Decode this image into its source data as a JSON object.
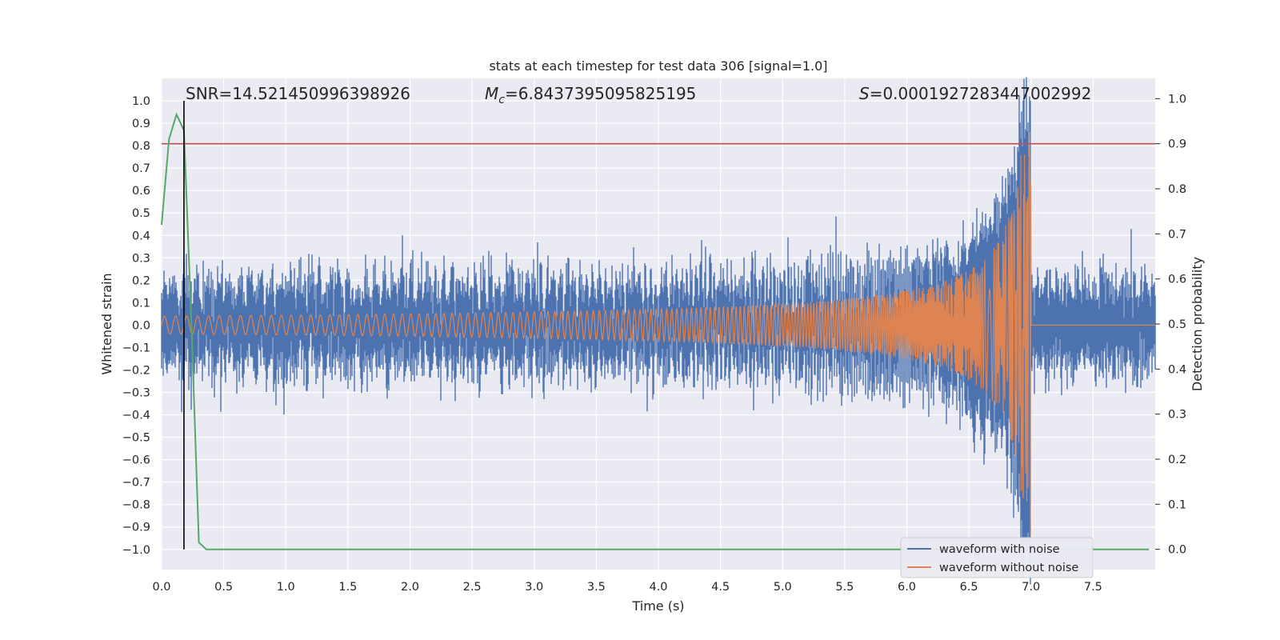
{
  "chart_data": {
    "type": "line",
    "title": "stats at each timestep for test data 306 [signal=1.0]",
    "xlabel": "Time (s)",
    "ylabel_left": "Whitened strain",
    "ylabel_right": "Detection probability",
    "xlim": [
      0.0,
      8.0
    ],
    "ylim_left": [
      -1.09,
      1.1
    ],
    "ylim_right": [
      -0.045,
      1.045
    ],
    "xticks": [
      "0.0",
      "0.5",
      "1.0",
      "1.5",
      "2.0",
      "2.5",
      "3.0",
      "3.5",
      "4.0",
      "4.5",
      "5.0",
      "5.5",
      "6.0",
      "6.5",
      "7.0",
      "7.5"
    ],
    "yticks_left": [
      "1.0",
      "0.9",
      "0.8",
      "0.7",
      "0.6",
      "0.5",
      "0.4",
      "0.3",
      "0.2",
      "0.1",
      "0.0",
      "−0.1",
      "−0.2",
      "−0.3",
      "−0.4",
      "−0.5",
      "−0.6",
      "−0.7",
      "−0.8",
      "−0.9",
      "−1.0"
    ],
    "yticks_right": [
      "1.0",
      "0.9",
      "0.8",
      "0.7",
      "0.6",
      "0.5",
      "0.4",
      "0.3",
      "0.2",
      "0.1",
      "0.0"
    ],
    "annotations": {
      "snr": "SNR=14.521450996398926",
      "mc_symbol": "M",
      "mc_sub": "c",
      "mc_value": "=6.8437395095825195",
      "s_symbol": "S",
      "s_value": "=0.0001927283447002992"
    },
    "threshold_probability": 0.9,
    "detection_time": 0.18,
    "merger_time": 7.0,
    "noise_sigma": 0.1,
    "series": [
      {
        "name": "waveform with noise",
        "color": "#4c72b0"
      },
      {
        "name": "waveform without noise",
        "color": "#dd8452"
      },
      {
        "name": "detection probability",
        "color": "#55a868",
        "x": [
          0.0,
          0.06,
          0.12,
          0.18,
          0.24,
          0.3,
          0.36,
          0.42,
          7.95
        ],
        "y": [
          0.72,
          0.91,
          0.965,
          0.93,
          0.5,
          0.015,
          0.0,
          0.0,
          0.0
        ]
      }
    ],
    "threshold_color": "#c44e52",
    "legend_position": "lower-right"
  }
}
